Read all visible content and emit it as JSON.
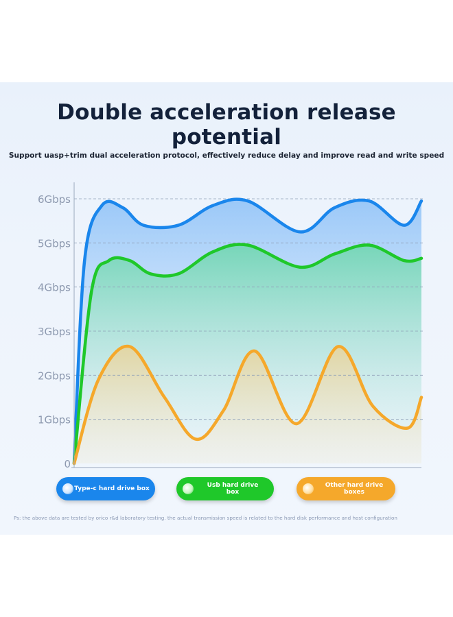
{
  "title": "Double acceleration release potential",
  "subtitle": "Support uasp+trim dual acceleration protocol, effectively reduce delay and improve read and write speed",
  "chart_data": {
    "type": "line",
    "y_tick_labels": [
      "0",
      "1Gbps",
      "2Gbps",
      "3Gbps",
      "4Gbps",
      "5Gbps",
      "6Gbps"
    ],
    "ylim": [
      0,
      6
    ],
    "xlim": [
      0,
      10
    ],
    "grid": true,
    "series": [
      {
        "name": "Type-c hard drive box",
        "color": "#1a86ec",
        "x": [
          0,
          0.3,
          0.8,
          1.4,
          2.0,
          3.0,
          4.0,
          5.0,
          6.5,
          7.5,
          8.5,
          9.5,
          10.0
        ],
        "values": [
          0,
          4.6,
          5.85,
          5.8,
          5.4,
          5.4,
          5.85,
          5.95,
          5.25,
          5.8,
          5.95,
          5.4,
          5.95
        ]
      },
      {
        "name": "Usb hard drive box",
        "color": "#1fc82a",
        "x": [
          0,
          0.5,
          1.0,
          1.6,
          2.2,
          3.0,
          4.0,
          5.0,
          6.5,
          7.5,
          8.5,
          9.5,
          10.0
        ],
        "values": [
          0,
          3.9,
          4.6,
          4.6,
          4.3,
          4.3,
          4.8,
          4.95,
          4.45,
          4.75,
          4.95,
          4.6,
          4.65
        ]
      },
      {
        "name": "Other hard drive boxes",
        "color": "#f5a82b",
        "x": [
          0,
          0.7,
          1.6,
          2.6,
          3.5,
          4.3,
          5.2,
          6.4,
          7.6,
          8.6,
          9.6,
          10.0
        ],
        "values": [
          0,
          1.9,
          2.65,
          1.5,
          0.55,
          1.2,
          2.55,
          0.9,
          2.65,
          1.3,
          0.8,
          1.5
        ]
      }
    ]
  },
  "legend": {
    "items": [
      {
        "label": "Type-c hard drive box",
        "color": "#1a86ec",
        "dot": "#cfe6ff"
      },
      {
        "label": "Usb hard drive box",
        "color": "#1fc82a",
        "dot": "#c9f5c4"
      },
      {
        "label": "Other hard drive boxes",
        "color": "#f5a82b",
        "dot": "#ffe1a6"
      }
    ]
  },
  "note": "Ps: the above data are tested by orico r&d laboratory testing. the actual transmission speed is related to the hard disk performance and host configuration"
}
